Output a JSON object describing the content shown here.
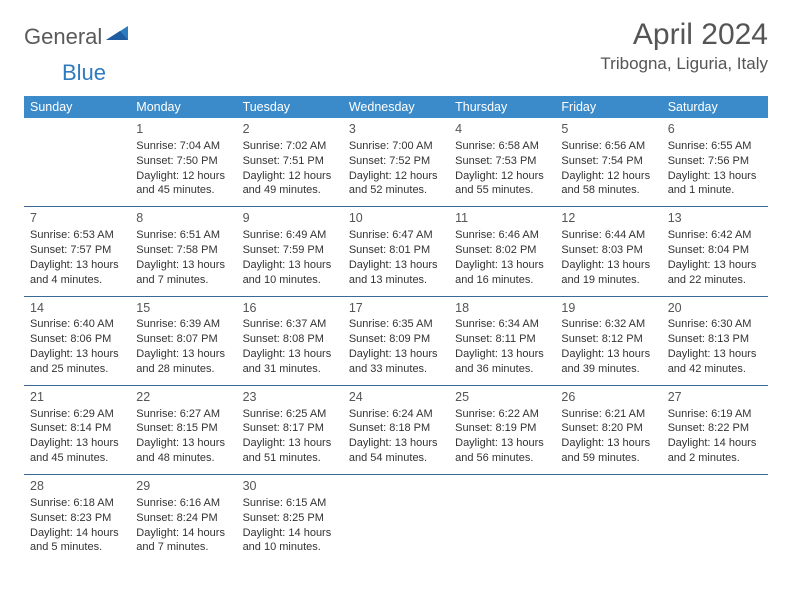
{
  "brand": {
    "part1": "General",
    "part2": "Blue"
  },
  "title": "April 2024",
  "location": "Tribogna, Liguria, Italy",
  "colors": {
    "header_bg": "#3b8bca",
    "header_text": "#ffffff",
    "cell_border": "#3b6a95",
    "body_text": "#333333",
    "title_text": "#555555",
    "logo_gray": "#5a5a5a",
    "logo_blue": "#2f7bbf",
    "background": "#ffffff"
  },
  "day_headers": [
    "Sunday",
    "Monday",
    "Tuesday",
    "Wednesday",
    "Thursday",
    "Friday",
    "Saturday"
  ],
  "weeks": [
    [
      {
        "day": "",
        "lines": []
      },
      {
        "day": "1",
        "lines": [
          "Sunrise: 7:04 AM",
          "Sunset: 7:50 PM",
          "Daylight: 12 hours",
          "and 45 minutes."
        ]
      },
      {
        "day": "2",
        "lines": [
          "Sunrise: 7:02 AM",
          "Sunset: 7:51 PM",
          "Daylight: 12 hours",
          "and 49 minutes."
        ]
      },
      {
        "day": "3",
        "lines": [
          "Sunrise: 7:00 AM",
          "Sunset: 7:52 PM",
          "Daylight: 12 hours",
          "and 52 minutes."
        ]
      },
      {
        "day": "4",
        "lines": [
          "Sunrise: 6:58 AM",
          "Sunset: 7:53 PM",
          "Daylight: 12 hours",
          "and 55 minutes."
        ]
      },
      {
        "day": "5",
        "lines": [
          "Sunrise: 6:56 AM",
          "Sunset: 7:54 PM",
          "Daylight: 12 hours",
          "and 58 minutes."
        ]
      },
      {
        "day": "6",
        "lines": [
          "Sunrise: 6:55 AM",
          "Sunset: 7:56 PM",
          "Daylight: 13 hours",
          "and 1 minute."
        ]
      }
    ],
    [
      {
        "day": "7",
        "lines": [
          "Sunrise: 6:53 AM",
          "Sunset: 7:57 PM",
          "Daylight: 13 hours",
          "and 4 minutes."
        ]
      },
      {
        "day": "8",
        "lines": [
          "Sunrise: 6:51 AM",
          "Sunset: 7:58 PM",
          "Daylight: 13 hours",
          "and 7 minutes."
        ]
      },
      {
        "day": "9",
        "lines": [
          "Sunrise: 6:49 AM",
          "Sunset: 7:59 PM",
          "Daylight: 13 hours",
          "and 10 minutes."
        ]
      },
      {
        "day": "10",
        "lines": [
          "Sunrise: 6:47 AM",
          "Sunset: 8:01 PM",
          "Daylight: 13 hours",
          "and 13 minutes."
        ]
      },
      {
        "day": "11",
        "lines": [
          "Sunrise: 6:46 AM",
          "Sunset: 8:02 PM",
          "Daylight: 13 hours",
          "and 16 minutes."
        ]
      },
      {
        "day": "12",
        "lines": [
          "Sunrise: 6:44 AM",
          "Sunset: 8:03 PM",
          "Daylight: 13 hours",
          "and 19 minutes."
        ]
      },
      {
        "day": "13",
        "lines": [
          "Sunrise: 6:42 AM",
          "Sunset: 8:04 PM",
          "Daylight: 13 hours",
          "and 22 minutes."
        ]
      }
    ],
    [
      {
        "day": "14",
        "lines": [
          "Sunrise: 6:40 AM",
          "Sunset: 8:06 PM",
          "Daylight: 13 hours",
          "and 25 minutes."
        ]
      },
      {
        "day": "15",
        "lines": [
          "Sunrise: 6:39 AM",
          "Sunset: 8:07 PM",
          "Daylight: 13 hours",
          "and 28 minutes."
        ]
      },
      {
        "day": "16",
        "lines": [
          "Sunrise: 6:37 AM",
          "Sunset: 8:08 PM",
          "Daylight: 13 hours",
          "and 31 minutes."
        ]
      },
      {
        "day": "17",
        "lines": [
          "Sunrise: 6:35 AM",
          "Sunset: 8:09 PM",
          "Daylight: 13 hours",
          "and 33 minutes."
        ]
      },
      {
        "day": "18",
        "lines": [
          "Sunrise: 6:34 AM",
          "Sunset: 8:11 PM",
          "Daylight: 13 hours",
          "and 36 minutes."
        ]
      },
      {
        "day": "19",
        "lines": [
          "Sunrise: 6:32 AM",
          "Sunset: 8:12 PM",
          "Daylight: 13 hours",
          "and 39 minutes."
        ]
      },
      {
        "day": "20",
        "lines": [
          "Sunrise: 6:30 AM",
          "Sunset: 8:13 PM",
          "Daylight: 13 hours",
          "and 42 minutes."
        ]
      }
    ],
    [
      {
        "day": "21",
        "lines": [
          "Sunrise: 6:29 AM",
          "Sunset: 8:14 PM",
          "Daylight: 13 hours",
          "and 45 minutes."
        ]
      },
      {
        "day": "22",
        "lines": [
          "Sunrise: 6:27 AM",
          "Sunset: 8:15 PM",
          "Daylight: 13 hours",
          "and 48 minutes."
        ]
      },
      {
        "day": "23",
        "lines": [
          "Sunrise: 6:25 AM",
          "Sunset: 8:17 PM",
          "Daylight: 13 hours",
          "and 51 minutes."
        ]
      },
      {
        "day": "24",
        "lines": [
          "Sunrise: 6:24 AM",
          "Sunset: 8:18 PM",
          "Daylight: 13 hours",
          "and 54 minutes."
        ]
      },
      {
        "day": "25",
        "lines": [
          "Sunrise: 6:22 AM",
          "Sunset: 8:19 PM",
          "Daylight: 13 hours",
          "and 56 minutes."
        ]
      },
      {
        "day": "26",
        "lines": [
          "Sunrise: 6:21 AM",
          "Sunset: 8:20 PM",
          "Daylight: 13 hours",
          "and 59 minutes."
        ]
      },
      {
        "day": "27",
        "lines": [
          "Sunrise: 6:19 AM",
          "Sunset: 8:22 PM",
          "Daylight: 14 hours",
          "and 2 minutes."
        ]
      }
    ],
    [
      {
        "day": "28",
        "lines": [
          "Sunrise: 6:18 AM",
          "Sunset: 8:23 PM",
          "Daylight: 14 hours",
          "and 5 minutes."
        ]
      },
      {
        "day": "29",
        "lines": [
          "Sunrise: 6:16 AM",
          "Sunset: 8:24 PM",
          "Daylight: 14 hours",
          "and 7 minutes."
        ]
      },
      {
        "day": "30",
        "lines": [
          "Sunrise: 6:15 AM",
          "Sunset: 8:25 PM",
          "Daylight: 14 hours",
          "and 10 minutes."
        ]
      },
      {
        "day": "",
        "lines": []
      },
      {
        "day": "",
        "lines": []
      },
      {
        "day": "",
        "lines": []
      },
      {
        "day": "",
        "lines": []
      }
    ]
  ]
}
